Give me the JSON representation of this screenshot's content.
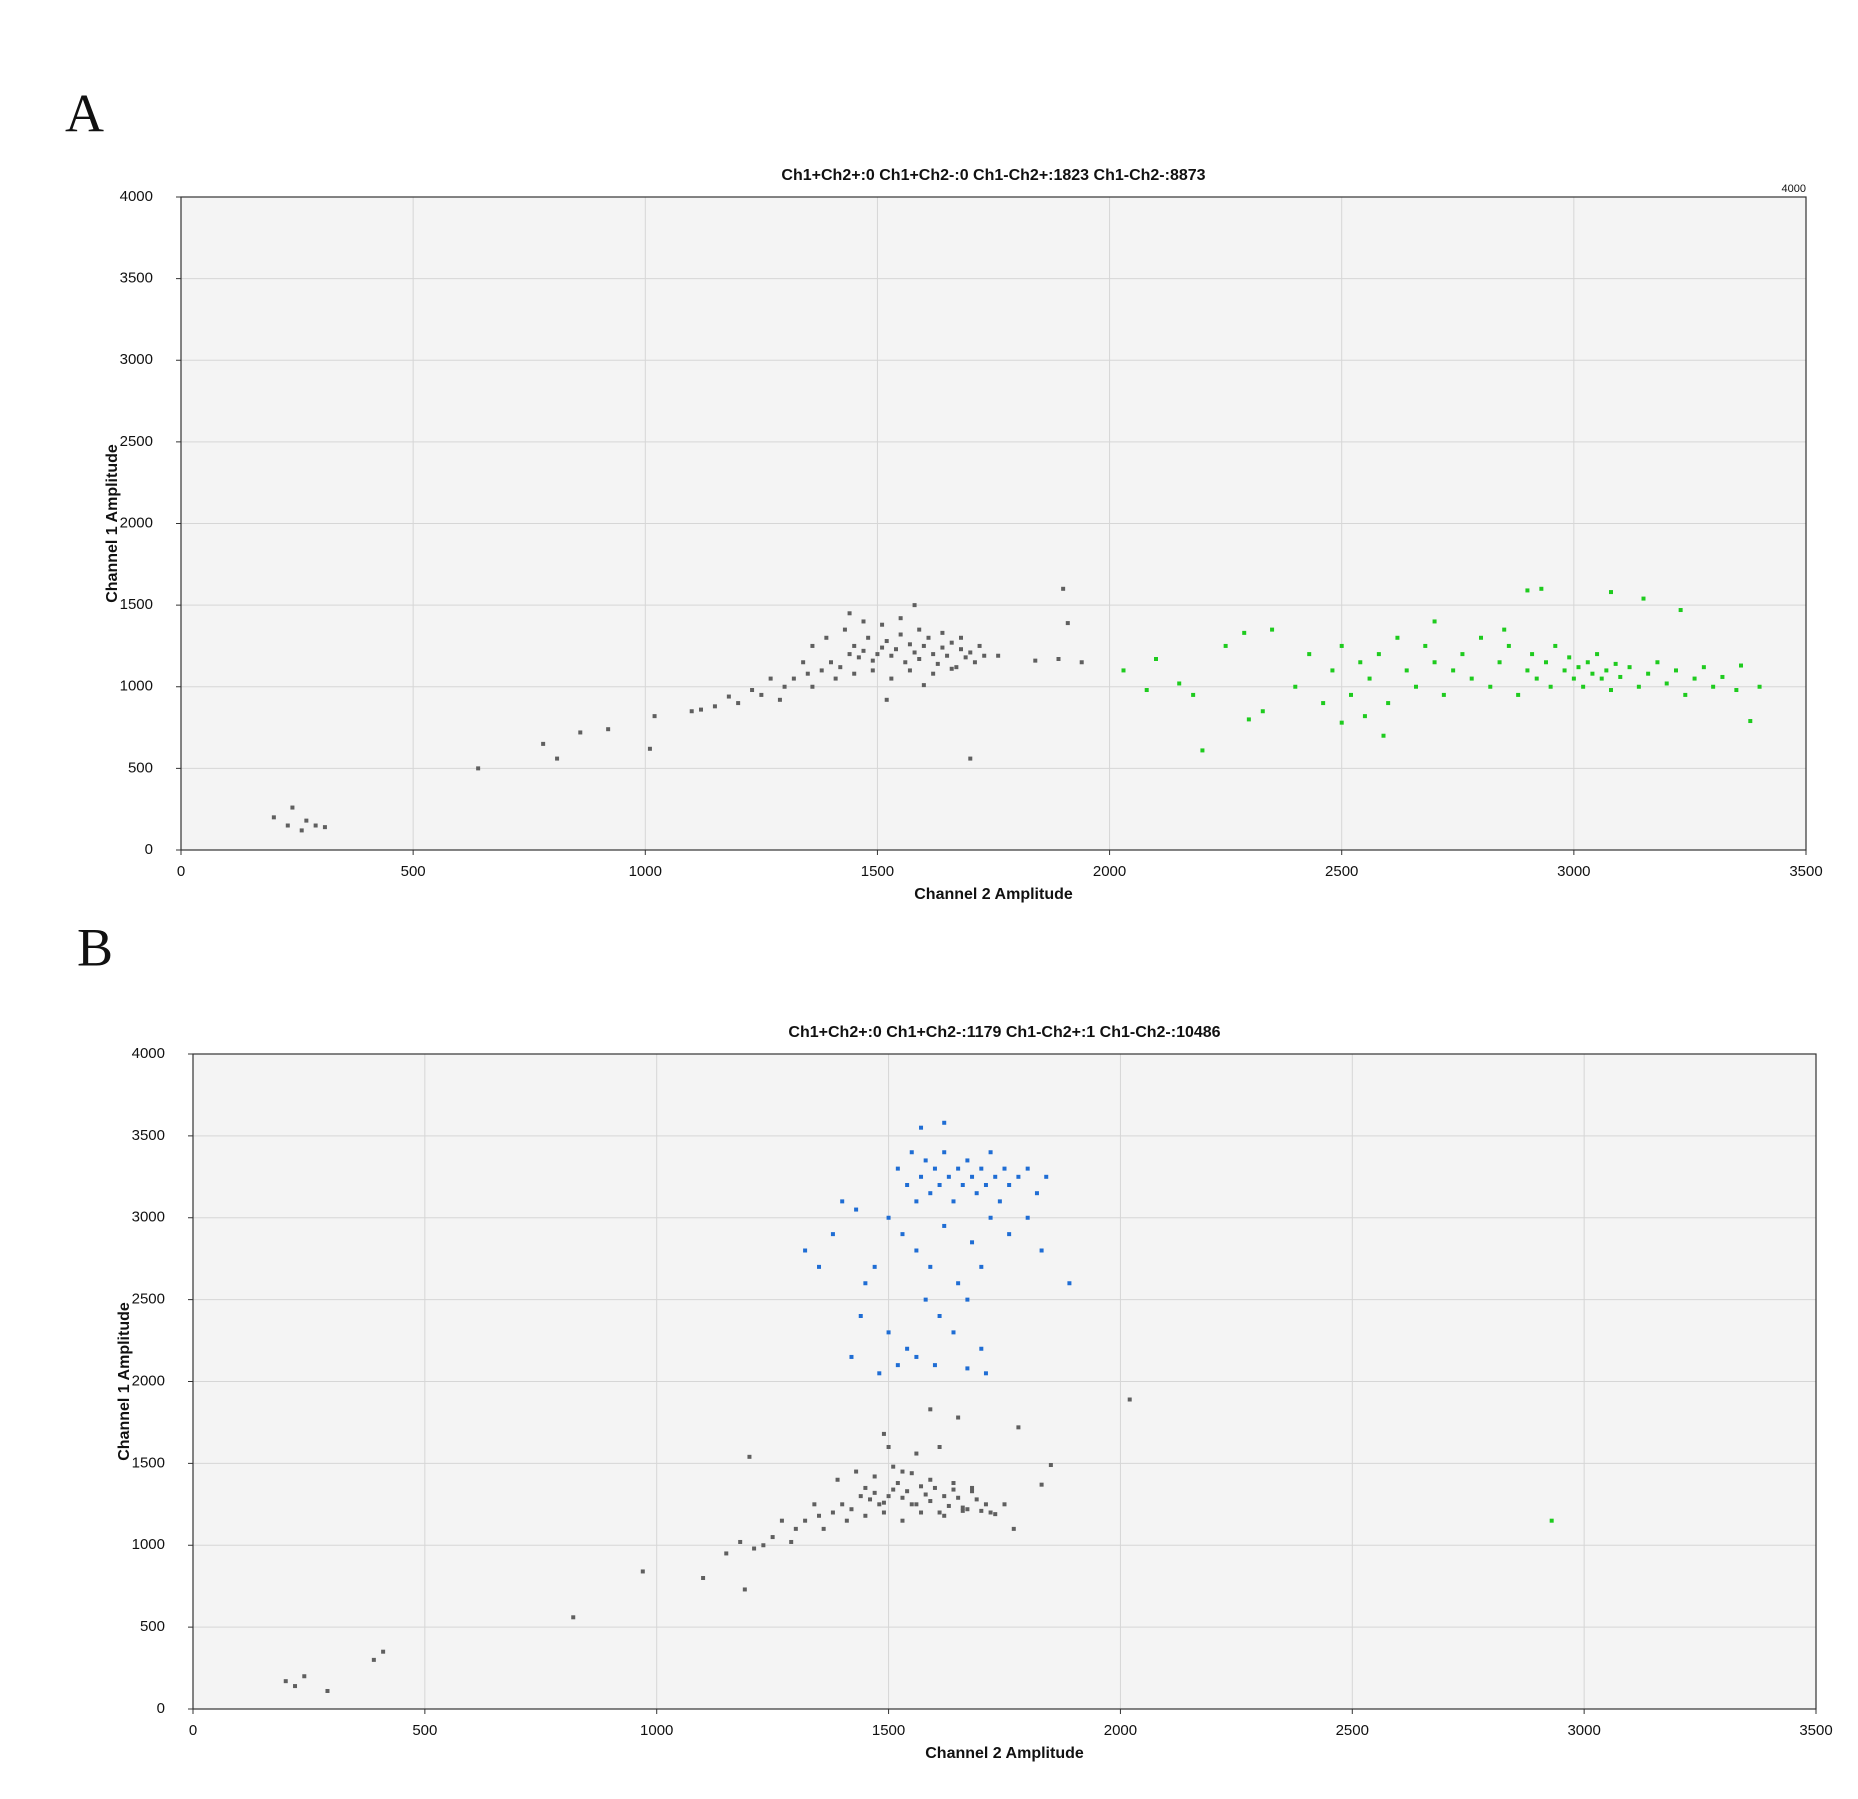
{
  "chart_data": [
    {
      "type": "scatter",
      "panel_label": "A",
      "title": "Ch1+Ch2+:0  Ch1+Ch2-:0  Ch1-Ch2+:1823  Ch1-Ch2-:8873",
      "annotation": "4000",
      "xlabel": "Channel 2 Amplitude",
      "ylabel": "Channel 1 Amplitude",
      "xlim": [
        0,
        3500
      ],
      "ylim": [
        0,
        4000
      ],
      "xticks": [
        0,
        500,
        1000,
        1500,
        2000,
        2500,
        3000,
        3500
      ],
      "yticks": [
        0,
        500,
        1000,
        1500,
        2000,
        2500,
        3000,
        3500,
        4000
      ],
      "grid": true,
      "series": [
        {
          "color": "#5f5f5f",
          "x": [
            1300,
            1320,
            1350,
            1380,
            1400,
            1420,
            1440,
            1450,
            1460,
            1470,
            1480,
            1490,
            1500,
            1510,
            1520,
            1530,
            1540,
            1550,
            1560,
            1570,
            1580,
            1590,
            1600,
            1610,
            1620,
            1630,
            1640,
            1650,
            1660,
            1670,
            1680,
            1690,
            1700,
            1710,
            1720,
            1730,
            1250,
            1230,
            1200,
            1180,
            1150,
            1120,
            1100,
            1270,
            1290,
            1340,
            1360,
            1390,
            1410,
            1430,
            1450,
            1470,
            1490,
            1510,
            1530,
            1550,
            1570,
            1590,
            1620,
            1640,
            1660,
            1680,
            1580,
            1440,
            1520,
            1360,
            1600,
            200,
            230,
            240,
            260,
            270,
            290,
            310,
            640,
            780,
            810,
            860,
            920,
            1010,
            1020,
            1700,
            1760,
            1840,
            1900,
            1910,
            1890,
            1940
          ],
          "values": [
            1000,
            1050,
            1080,
            1100,
            1150,
            1120,
            1200,
            1250,
            1180,
            1220,
            1300,
            1160,
            1200,
            1240,
            1280,
            1190,
            1230,
            1320,
            1150,
            1260,
            1210,
            1170,
            1250,
            1300,
            1200,
            1140,
            1240,
            1190,
            1270,
            1120,
            1230,
            1180,
            1210,
            1150,
            1250,
            1190,
            950,
            980,
            900,
            940,
            880,
            860,
            850,
            1050,
            920,
            1150,
            1000,
            1300,
            1050,
            1350,
            1080,
            1400,
            1100,
            1380,
            1050,
            1420,
            1100,
            1350,
            1080,
            1330,
            1110,
            1300,
            1500,
            1450,
            920,
            1250,
            1010,
            200,
            150,
            260,
            120,
            180,
            150,
            140,
            500,
            650,
            560,
            720,
            740,
            620,
            820,
            560,
            1190,
            1160,
            1600,
            1390,
            1170,
            1150
          ]
        },
        {
          "color": "#1ecb1e",
          "x": [
            2400,
            2430,
            2460,
            2480,
            2500,
            2520,
            2540,
            2560,
            2580,
            2600,
            2620,
            2640,
            2660,
            2680,
            2700,
            2720,
            2740,
            2760,
            2780,
            2800,
            2820,
            2840,
            2860,
            2880,
            2900,
            2910,
            2920,
            2940,
            2950,
            2960,
            2980,
            2990,
            3000,
            3010,
            3020,
            3030,
            3040,
            3050,
            3060,
            3070,
            3080,
            3090,
            3100,
            3120,
            3140,
            3160,
            3180,
            3200,
            3220,
            3240,
            3260,
            3280,
            3300,
            3320,
            3350,
            3360,
            3400,
            2350,
            2330,
            2300,
            2250,
            2180,
            2150,
            2100,
            2080,
            2550,
            2590,
            2700,
            2850,
            3230,
            3150,
            2500,
            2030,
            2200,
            2290,
            2900,
            2930,
            3080,
            3380
          ],
          "values": [
            1000,
            1200,
            900,
            1100,
            1250,
            950,
            1150,
            1050,
            1200,
            900,
            1300,
            1100,
            1000,
            1250,
            1150,
            950,
            1100,
            1200,
            1050,
            1300,
            1000,
            1150,
            1250,
            950,
            1100,
            1200,
            1050,
            1150,
            1000,
            1250,
            1100,
            1180,
            1050,
            1120,
            1000,
            1150,
            1080,
            1200,
            1050,
            1100,
            980,
            1140,
            1060,
            1120,
            1000,
            1080,
            1150,
            1020,
            1100,
            950,
            1050,
            1120,
            1000,
            1060,
            980,
            1130,
            1000,
            1350,
            850,
            800,
            1250,
            950,
            1020,
            1170,
            980,
            820,
            700,
            1400,
            1350,
            1470,
            1540,
            780,
            1100,
            610,
            1330,
            1590,
            1600,
            1580,
            790
          ]
        }
      ]
    },
    {
      "type": "scatter",
      "panel_label": "B",
      "title": "Ch1+Ch2+:0  Ch1+Ch2-:1179  Ch1-Ch2+:1  Ch1-Ch2-:10486",
      "xlabel": "Channel 2 Amplitude",
      "ylabel": "Channel 1 Amplitude",
      "xlim": [
        0,
        3500
      ],
      "ylim": [
        0,
        4000
      ],
      "xticks": [
        0,
        500,
        1000,
        1500,
        2000,
        2500,
        3000,
        3500
      ],
      "yticks": [
        0,
        500,
        1000,
        1500,
        2000,
        2500,
        3000,
        3500,
        4000
      ],
      "grid": true,
      "series": [
        {
          "color": "#5f5f5f",
          "x": [
            1300,
            1320,
            1350,
            1380,
            1400,
            1420,
            1440,
            1450,
            1460,
            1470,
            1480,
            1490,
            1500,
            1510,
            1520,
            1530,
            1540,
            1550,
            1560,
            1570,
            1580,
            1590,
            1600,
            1610,
            1620,
            1630,
            1640,
            1650,
            1660,
            1670,
            1680,
            1690,
            1700,
            1710,
            1720,
            1730,
            1250,
            1230,
            1210,
            1180,
            1150,
            1270,
            1290,
            1340,
            1360,
            1390,
            1410,
            1430,
            1450,
            1470,
            1490,
            1510,
            1530,
            1550,
            1570,
            1590,
            1620,
            1640,
            1660,
            1680,
            1750,
            200,
            220,
            240,
            290,
            390,
            410,
            820,
            970,
            1200,
            1190,
            1100,
            1770,
            1780,
            1830,
            1850,
            2020,
            1490,
            1500,
            1530,
            1560,
            1610,
            1650,
            1590
          ],
          "values": [
            1100,
            1150,
            1180,
            1200,
            1250,
            1220,
            1300,
            1350,
            1280,
            1320,
            1250,
            1260,
            1300,
            1340,
            1380,
            1290,
            1330,
            1250,
            1250,
            1360,
            1310,
            1270,
            1350,
            1200,
            1300,
            1240,
            1340,
            1290,
            1230,
            1220,
            1330,
            1280,
            1210,
            1250,
            1200,
            1190,
            1050,
            1000,
            980,
            1020,
            950,
            1150,
            1020,
            1250,
            1100,
            1400,
            1150,
            1450,
            1180,
            1420,
            1200,
            1480,
            1150,
            1440,
            1200,
            1400,
            1180,
            1380,
            1210,
            1350,
            1250,
            170,
            140,
            200,
            110,
            300,
            350,
            560,
            840,
            1540,
            730,
            800,
            1100,
            1720,
            1370,
            1490,
            1890,
            1680,
            1600,
            1450,
            1560,
            1600,
            1780,
            1830
          ]
        },
        {
          "color": "#1f6dd4",
          "x": [
            1500,
            1520,
            1540,
            1550,
            1560,
            1570,
            1580,
            1590,
            1600,
            1610,
            1620,
            1630,
            1640,
            1650,
            1660,
            1670,
            1680,
            1690,
            1700,
            1710,
            1720,
            1730,
            1740,
            1750,
            1760,
            1780,
            1800,
            1820,
            1530,
            1560,
            1590,
            1620,
            1650,
            1680,
            1700,
            1720,
            1580,
            1610,
            1640,
            1670,
            1700,
            1710,
            1540,
            1520,
            1480,
            1450,
            1440,
            1420,
            1400,
            1380,
            1320,
            1350,
            1470,
            1500,
            1560,
            1600,
            1670,
            1430,
            1760,
            1830,
            1890,
            1840,
            1620,
            1570,
            1800
          ],
          "values": [
            3000,
            3300,
            3200,
            3400,
            3100,
            3250,
            3350,
            3150,
            3300,
            3200,
            3400,
            3250,
            3100,
            3300,
            3200,
            3350,
            3250,
            3150,
            3300,
            3200,
            3400,
            3250,
            3100,
            3300,
            3200,
            3250,
            3300,
            3150,
            2900,
            2800,
            2700,
            2950,
            2600,
            2850,
            2700,
            3000,
            2500,
            2400,
            2300,
            2500,
            2200,
            2050,
            2200,
            2100,
            2050,
            2600,
            2400,
            2150,
            3100,
            2900,
            2800,
            2700,
            2700,
            2300,
            2150,
            2100,
            2080,
            3050,
            2900,
            2800,
            2600,
            3250,
            3580,
            3550,
            3000
          ]
        },
        {
          "color": "#1ecb1e",
          "x": [
            2930
          ],
          "values": [
            1150
          ]
        }
      ]
    }
  ]
}
